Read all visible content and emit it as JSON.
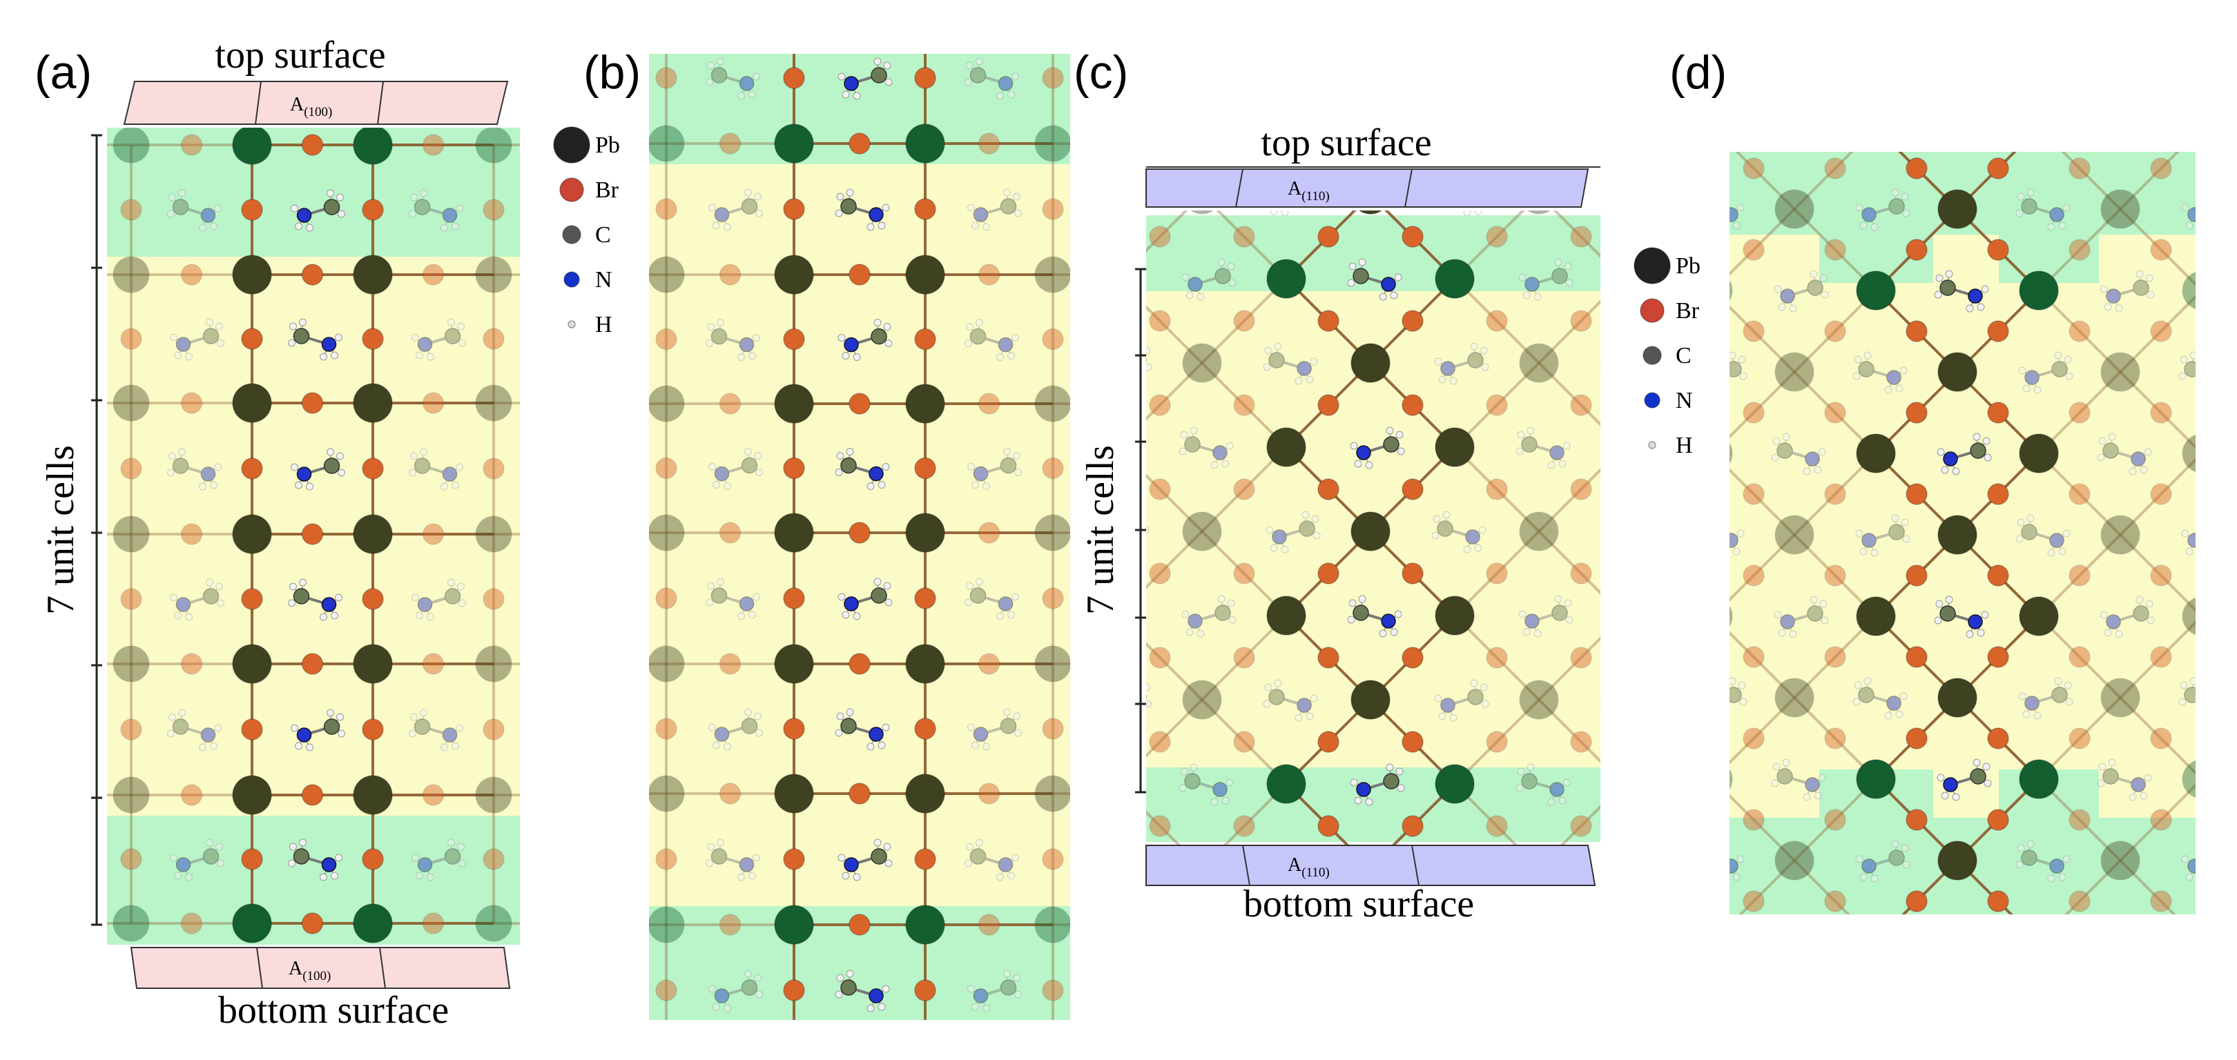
{
  "colors": {
    "surface_green": "#b9f5c8",
    "bulk_yellow": "#fbfbc8",
    "pink_slab": "#fbdcdc",
    "blue_slab": "#c6c6fb",
    "pb_dark": "#3e4220",
    "pb_surface": "#145f30",
    "br": "#d9642a",
    "c": "#6a7a55",
    "n": "#2233cc",
    "h": "#f2f2f2"
  },
  "panels": [
    {
      "label": "(a)",
      "top_surface_title": "top surface",
      "bottom_surface_title": "bottom surface",
      "slab_label_main": "A",
      "slab_label_sub": "(100)",
      "cell_count_label": "7 unit cells"
    },
    {
      "label": "(b)"
    },
    {
      "label": "(c)",
      "top_surface_title": "top surface",
      "bottom_surface_title": "bottom surface",
      "slab_label_main": "A",
      "slab_label_sub": "(110)",
      "cell_count_label": "7 unit cells"
    },
    {
      "label": "(d)"
    }
  ],
  "legends": [
    {
      "items": [
        {
          "symbol": "Pb",
          "color": "#222222"
        },
        {
          "symbol": "Br",
          "color": "#cc4433"
        },
        {
          "symbol": "C",
          "color": "#555555"
        },
        {
          "symbol": "N",
          "color": "#1133cc"
        },
        {
          "symbol": "H",
          "color": "#dddddd"
        }
      ]
    },
    {
      "items": [
        {
          "symbol": "Pb",
          "color": "#222222"
        },
        {
          "symbol": "Br",
          "color": "#cc4433"
        },
        {
          "symbol": "C",
          "color": "#555555"
        },
        {
          "symbol": "N",
          "color": "#1133cc"
        },
        {
          "symbol": "H",
          "color": "#dddddd"
        }
      ]
    }
  ]
}
